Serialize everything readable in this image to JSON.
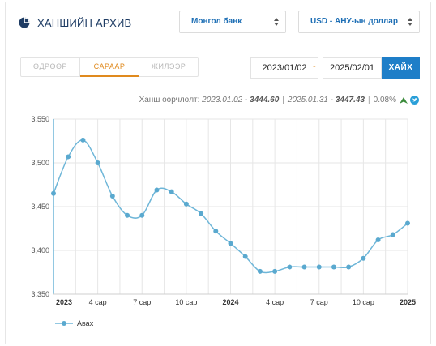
{
  "header": {
    "title": "ХАНШИЙН АРХИВ",
    "bank_select": "Монгол банк",
    "currency_select": "USD - АНУ-ын доллар"
  },
  "tabs": [
    {
      "label": "ӨДРӨӨР"
    },
    {
      "label": "САРААР"
    },
    {
      "label": "ЖИЛЭЭР"
    }
  ],
  "date_range": {
    "from": "2023/01/02",
    "dash": "-",
    "to": "2025/02/01",
    "search_label": "ХАЙХ"
  },
  "stats": {
    "label": "Ханш өөрчлөлт:",
    "start_date": "2023.01.02",
    "start_dash": "-",
    "start_value": "3444.60",
    "sep": "|",
    "end_date": "2025.01.31",
    "end_dash": "-",
    "end_value": "3447.43",
    "sep2": "|",
    "change": "0.08%"
  },
  "colors": {
    "line": "#6eb6d8",
    "marker": "#5aa9cf",
    "grid": "#e6e6e6",
    "accent": "#e08a1e",
    "button": "#1e7ec8",
    "up_arrow": "#3a8a3a"
  },
  "chart_data": {
    "type": "line",
    "ylim": [
      3350,
      3550
    ],
    "yticks": [
      "3,350",
      "3,400",
      "3,450",
      "3,500",
      "3,550"
    ],
    "ytick_values": [
      3350,
      3400,
      3450,
      3500,
      3550
    ],
    "xlim": [
      0,
      24
    ],
    "xticks": [
      {
        "x": 0,
        "label": "2023",
        "bold": true
      },
      {
        "x": 3,
        "label": "4 сар",
        "bold": false
      },
      {
        "x": 6,
        "label": "7 сар",
        "bold": false
      },
      {
        "x": 9,
        "label": "10 сар",
        "bold": false
      },
      {
        "x": 12,
        "label": "2024",
        "bold": true
      },
      {
        "x": 15,
        "label": "4 сар",
        "bold": false
      },
      {
        "x": 18,
        "label": "7 сар",
        "bold": false
      },
      {
        "x": 21,
        "label": "10 сар",
        "bold": false
      },
      {
        "x": 24,
        "label": "2025",
        "bold": true
      }
    ],
    "series": [
      {
        "name": "Авах",
        "x": [
          0,
          1,
          2,
          3,
          4,
          5,
          6,
          7,
          8,
          9,
          10,
          11,
          12,
          13,
          14,
          15,
          16,
          17,
          18,
          19,
          20,
          21,
          22,
          23,
          24
        ],
        "values": [
          3465,
          3507,
          3526,
          3500,
          3462,
          3440,
          3440,
          3469,
          3467,
          3453,
          3442,
          3422,
          3408,
          3393,
          3376,
          3376,
          3381,
          3381,
          3381,
          3381,
          3381,
          3391,
          3412,
          3418,
          3431
        ]
      }
    ],
    "grid": true,
    "legend_position": "bottom-left"
  }
}
